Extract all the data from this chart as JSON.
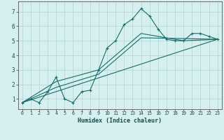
{
  "xlabel": "Humidex (Indice chaleur)",
  "background_color": "#d6f0f0",
  "grid_color": "#b8d8d8",
  "line_color": "#1a6b6b",
  "xlim": [
    -0.5,
    23.5
  ],
  "ylim": [
    0.3,
    7.7
  ],
  "xticks": [
    0,
    1,
    2,
    3,
    4,
    5,
    6,
    7,
    8,
    9,
    10,
    11,
    12,
    13,
    14,
    15,
    16,
    17,
    18,
    19,
    20,
    21,
    22,
    23
  ],
  "yticks": [
    1,
    2,
    3,
    4,
    5,
    6,
    7
  ],
  "series1_x": [
    0,
    1,
    2,
    3,
    4,
    5,
    6,
    7,
    8,
    9,
    10,
    11,
    12,
    13,
    14,
    15,
    16,
    17,
    18,
    19,
    20,
    21,
    22,
    23
  ],
  "series1_y": [
    0.75,
    1.0,
    0.75,
    1.5,
    2.5,
    1.0,
    0.75,
    1.5,
    1.6,
    3.0,
    4.5,
    5.0,
    6.1,
    6.5,
    7.2,
    6.7,
    5.8,
    5.1,
    5.0,
    5.0,
    5.5,
    5.5,
    5.3,
    5.1
  ],
  "series2_x": [
    0,
    4,
    9,
    14,
    19,
    23
  ],
  "series2_y": [
    0.75,
    2.2,
    3.0,
    5.5,
    5.0,
    5.1
  ],
  "series3_x": [
    0,
    4,
    9,
    14,
    19,
    23
  ],
  "series3_y": [
    0.75,
    1.8,
    2.7,
    5.2,
    5.15,
    5.1
  ],
  "series4_x": [
    0,
    23
  ],
  "series4_y": [
    0.75,
    5.1
  ]
}
